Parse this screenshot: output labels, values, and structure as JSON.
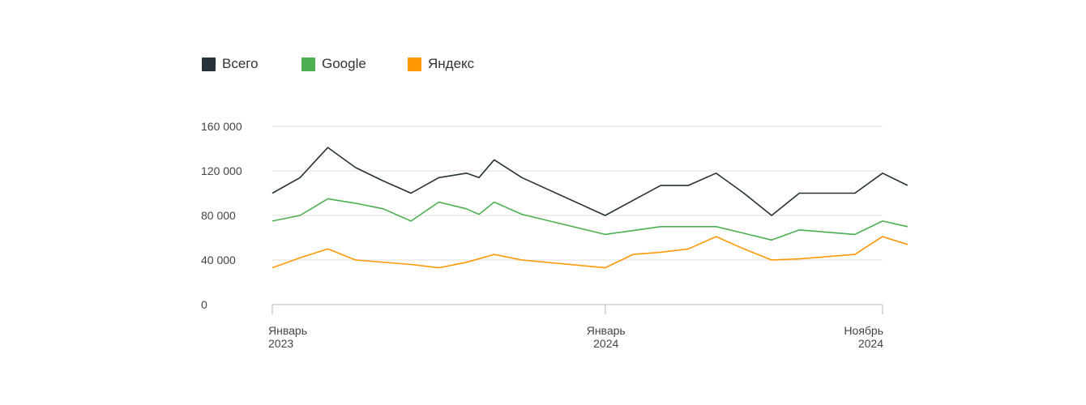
{
  "chart_data": {
    "type": "line",
    "title": "",
    "xlabel": "",
    "ylabel": "",
    "ylim": [
      0,
      160000
    ],
    "y_ticks": [
      0,
      40000,
      80000,
      120000,
      160000
    ],
    "y_tick_labels": [
      "0",
      "40 000",
      "80 000",
      "120 000",
      "160 000"
    ],
    "x_range": [
      "2023-01",
      "2024-11"
    ],
    "x": [
      "2023-01",
      "2023-02",
      "2023-03",
      "2023-04",
      "2023-05",
      "2023-06",
      "2023-07",
      "2023-08",
      "2023-09",
      "2023-10",
      "2023-11",
      "2023-12",
      "2024-01",
      "2024-02",
      "2024-03",
      "2024-04",
      "2024-05",
      "2024-06",
      "2024-07",
      "2024-08",
      "2024-09",
      "2024-10",
      "2024-11"
    ],
    "x_ticks": [
      {
        "x": "2023-01",
        "line1": "Январь",
        "line2": "2023",
        "anchor": "start"
      },
      {
        "x": "2024-01",
        "line1": "Январь",
        "line2": "2024",
        "anchor": "middle"
      },
      {
        "x": "2024-11",
        "line1": "Ноябрь",
        "line2": "2024",
        "anchor": "end"
      }
    ],
    "legend_position": "top-left",
    "grid": true,
    "series": [
      {
        "name": "Всего",
        "color": "#263238",
        "points": [
          [
            "2023-01",
            100000
          ],
          [
            "2023-02",
            114000
          ],
          [
            "2023-03",
            141000
          ],
          [
            "2023-04",
            123000
          ],
          [
            "2023-05",
            111000
          ],
          [
            "2023-06",
            100000
          ],
          [
            "2023-07",
            114000
          ],
          [
            "2023-08",
            118000
          ],
          [
            "2023-08-15",
            114000
          ],
          [
            "2023-09",
            130000
          ],
          [
            "2023-10",
            114000
          ],
          [
            "2024-01",
            80000
          ],
          [
            "2024-03",
            107000
          ],
          [
            "2024-04",
            107000
          ],
          [
            "2024-05",
            118000
          ],
          [
            "2024-06",
            100000
          ],
          [
            "2024-07",
            80000
          ],
          [
            "2024-08",
            100000
          ],
          [
            "2024-10",
            100000
          ],
          [
            "2024-11",
            118000
          ],
          [
            "2024-11-28",
            107000
          ]
        ]
      },
      {
        "name": "Google",
        "color": "#4caf50",
        "points": [
          [
            "2023-01",
            75000
          ],
          [
            "2023-02",
            80000
          ],
          [
            "2023-03",
            95000
          ],
          [
            "2023-04",
            91000
          ],
          [
            "2023-05",
            86000
          ],
          [
            "2023-06",
            75000
          ],
          [
            "2023-07",
            92000
          ],
          [
            "2023-08",
            86000
          ],
          [
            "2023-08-15",
            81000
          ],
          [
            "2023-09",
            92000
          ],
          [
            "2023-10",
            81000
          ],
          [
            "2024-01",
            63000
          ],
          [
            "2024-03",
            70000
          ],
          [
            "2024-04",
            70000
          ],
          [
            "2024-05",
            70000
          ],
          [
            "2024-06",
            64000
          ],
          [
            "2024-07",
            58000
          ],
          [
            "2024-08",
            67000
          ],
          [
            "2024-10",
            63000
          ],
          [
            "2024-11",
            75000
          ],
          [
            "2024-11-28",
            70000
          ]
        ]
      },
      {
        "name": "Яндекс",
        "color": "#ff9800",
        "points": [
          [
            "2023-01",
            33000
          ],
          [
            "2023-02",
            42000
          ],
          [
            "2023-03",
            50000
          ],
          [
            "2023-04",
            40000
          ],
          [
            "2023-06",
            36000
          ],
          [
            "2023-07",
            33000
          ],
          [
            "2023-08",
            38000
          ],
          [
            "2023-09",
            45000
          ],
          [
            "2023-10",
            40000
          ],
          [
            "2024-01",
            33000
          ],
          [
            "2024-02",
            45000
          ],
          [
            "2024-03",
            47000
          ],
          [
            "2024-04",
            50000
          ],
          [
            "2024-05",
            61000
          ],
          [
            "2024-06",
            50000
          ],
          [
            "2024-07",
            40000
          ],
          [
            "2024-08",
            41000
          ],
          [
            "2024-10",
            45000
          ],
          [
            "2024-11",
            61000
          ],
          [
            "2024-11-28",
            54000
          ]
        ]
      }
    ]
  }
}
